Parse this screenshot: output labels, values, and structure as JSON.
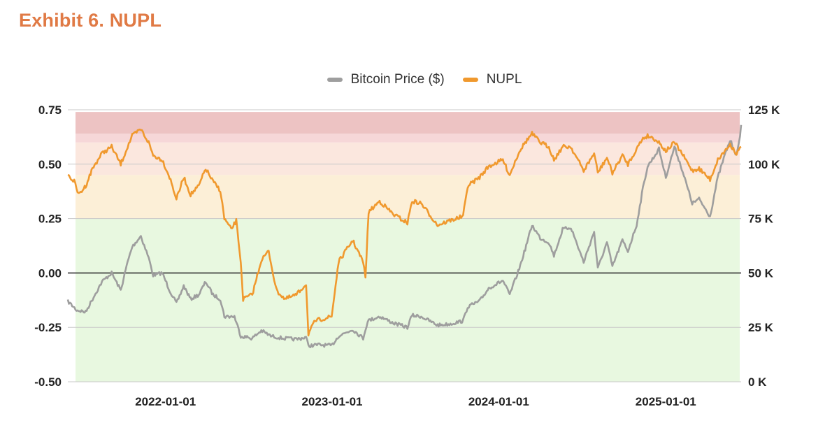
{
  "title": "Exhibit 6. NUPL",
  "chart_data": {
    "type": "line",
    "title": "Exhibit 6. NUPL",
    "legend_placement": "top-center",
    "legend": [
      {
        "name": "Bitcoin Price ($)",
        "color": "#9E9E9E"
      },
      {
        "name": "NUPL",
        "color": "#F0992E"
      }
    ],
    "x_range": [
      "2021-06-01",
      "2025-06-15"
    ],
    "x_ticks": [
      "2022-01-01",
      "2023-01-01",
      "2024-01-01",
      "2025-01-01"
    ],
    "y_left": {
      "range": [
        -0.5,
        0.75
      ],
      "ticks": [
        0.75,
        0.5,
        0.25,
        0.0,
        -0.25,
        -0.5
      ],
      "tick_labels": [
        "0.75",
        "0.50",
        "0.25",
        "0.00",
        "-0.25",
        "-0.50"
      ]
    },
    "y_right": {
      "range": [
        0,
        125000
      ],
      "ticks": [
        125000,
        100000,
        75000,
        50000,
        25000,
        0
      ],
      "tick_labels": [
        "125 K",
        "100 K",
        "75 K",
        "50 K",
        "25 K",
        "0 K"
      ]
    },
    "zones": [
      {
        "from": -0.5,
        "to": 0.25,
        "color": "#E8F8E0"
      },
      {
        "from": 0.25,
        "to": 0.45,
        "color": "#FCEFD7"
      },
      {
        "from": 0.45,
        "to": 0.6,
        "color": "#FBE7DE"
      },
      {
        "from": 0.6,
        "to": 0.64,
        "color": "#F6D7D8"
      },
      {
        "from": 0.64,
        "to": 0.74,
        "color": "#EDC3C3"
      }
    ],
    "series": [
      {
        "name": "Bitcoin Price ($)",
        "axis": "right",
        "points": [
          [
            "2021-06-01",
            37000
          ],
          [
            "2021-06-20",
            33000
          ],
          [
            "2021-07-10",
            32000
          ],
          [
            "2021-07-25",
            38000
          ],
          [
            "2021-08-15",
            46000
          ],
          [
            "2021-09-05",
            50000
          ],
          [
            "2021-09-25",
            42000
          ],
          [
            "2021-10-10",
            55000
          ],
          [
            "2021-10-20",
            62000
          ],
          [
            "2021-11-08",
            67000
          ],
          [
            "2021-11-25",
            57000
          ],
          [
            "2021-12-05",
            49000
          ],
          [
            "2021-12-25",
            50000
          ],
          [
            "2022-01-10",
            42000
          ],
          [
            "2022-01-25",
            36000
          ],
          [
            "2022-02-10",
            44000
          ],
          [
            "2022-02-25",
            38000
          ],
          [
            "2022-03-15",
            40000
          ],
          [
            "2022-03-30",
            46000
          ],
          [
            "2022-04-15",
            40000
          ],
          [
            "2022-05-01",
            38000
          ],
          [
            "2022-05-10",
            30000
          ],
          [
            "2022-06-01",
            30000
          ],
          [
            "2022-06-15",
            21000
          ],
          [
            "2022-07-10",
            20000
          ],
          [
            "2022-07-30",
            23500
          ],
          [
            "2022-08-20",
            21000
          ],
          [
            "2022-09-15",
            20000
          ],
          [
            "2022-10-15",
            19500
          ],
          [
            "2022-11-05",
            20500
          ],
          [
            "2022-11-10",
            16500
          ],
          [
            "2022-12-01",
            17000
          ],
          [
            "2022-12-31",
            16600
          ],
          [
            "2023-01-15",
            21000
          ],
          [
            "2023-02-15",
            24000
          ],
          [
            "2023-03-10",
            20000
          ],
          [
            "2023-03-20",
            28000
          ],
          [
            "2023-04-15",
            30000
          ],
          [
            "2023-05-15",
            27000
          ],
          [
            "2023-06-15",
            25000
          ],
          [
            "2023-06-25",
            30500
          ],
          [
            "2023-07-15",
            30000
          ],
          [
            "2023-08-20",
            26000
          ],
          [
            "2023-09-15",
            26500
          ],
          [
            "2023-10-15",
            28000
          ],
          [
            "2023-10-25",
            34500
          ],
          [
            "2023-11-20",
            37000
          ],
          [
            "2023-12-10",
            43000
          ],
          [
            "2024-01-10",
            46500
          ],
          [
            "2024-01-25",
            40000
          ],
          [
            "2024-02-15",
            52000
          ],
          [
            "2024-02-28",
            61000
          ],
          [
            "2024-03-14",
            72000
          ],
          [
            "2024-04-01",
            66000
          ],
          [
            "2024-04-20",
            64000
          ],
          [
            "2024-05-01",
            58000
          ],
          [
            "2024-05-20",
            70000
          ],
          [
            "2024-06-07",
            71000
          ],
          [
            "2024-07-05",
            55000
          ],
          [
            "2024-07-28",
            69000
          ],
          [
            "2024-08-05",
            52000
          ],
          [
            "2024-08-25",
            64000
          ],
          [
            "2024-09-06",
            53000
          ],
          [
            "2024-09-28",
            65000
          ],
          [
            "2024-10-10",
            60000
          ],
          [
            "2024-10-29",
            72000
          ],
          [
            "2024-11-12",
            89000
          ],
          [
            "2024-11-22",
            99000
          ],
          [
            "2024-12-05",
            103000
          ],
          [
            "2024-12-17",
            107000
          ],
          [
            "2025-01-01",
            94000
          ],
          [
            "2025-01-20",
            108000
          ],
          [
            "2025-02-05",
            98000
          ],
          [
            "2025-02-28",
            82000
          ],
          [
            "2025-03-15",
            84000
          ],
          [
            "2025-04-08",
            76000
          ],
          [
            "2025-04-25",
            94000
          ],
          [
            "2025-05-10",
            104000
          ],
          [
            "2025-05-22",
            111000
          ],
          [
            "2025-06-05",
            104000
          ],
          [
            "2025-06-10",
            109000
          ],
          [
            "2025-06-15",
            118000
          ]
        ]
      },
      {
        "name": "NUPL",
        "axis": "left",
        "points": [
          [
            "2021-06-01",
            0.45
          ],
          [
            "2021-06-15",
            0.42
          ],
          [
            "2021-06-25",
            0.36
          ],
          [
            "2021-07-10",
            0.4
          ],
          [
            "2021-07-25",
            0.48
          ],
          [
            "2021-08-15",
            0.55
          ],
          [
            "2021-09-05",
            0.58
          ],
          [
            "2021-09-25",
            0.5
          ],
          [
            "2021-10-10",
            0.58
          ],
          [
            "2021-10-20",
            0.63
          ],
          [
            "2021-11-08",
            0.66
          ],
          [
            "2021-11-25",
            0.6
          ],
          [
            "2021-12-05",
            0.54
          ],
          [
            "2021-12-25",
            0.52
          ],
          [
            "2022-01-10",
            0.44
          ],
          [
            "2022-01-25",
            0.34
          ],
          [
            "2022-02-10",
            0.44
          ],
          [
            "2022-02-25",
            0.36
          ],
          [
            "2022-03-15",
            0.4
          ],
          [
            "2022-03-30",
            0.48
          ],
          [
            "2022-04-15",
            0.42
          ],
          [
            "2022-05-01",
            0.38
          ],
          [
            "2022-05-10",
            0.25
          ],
          [
            "2022-05-25",
            0.2
          ],
          [
            "2022-06-05",
            0.24
          ],
          [
            "2022-06-15",
            0.05
          ],
          [
            "2022-06-20",
            -0.12
          ],
          [
            "2022-07-10",
            -0.1
          ],
          [
            "2022-07-30",
            0.06
          ],
          [
            "2022-08-15",
            0.1
          ],
          [
            "2022-09-01",
            -0.08
          ],
          [
            "2022-09-20",
            -0.12
          ],
          [
            "2022-10-15",
            -0.1
          ],
          [
            "2022-11-05",
            -0.05
          ],
          [
            "2022-11-10",
            -0.28
          ],
          [
            "2022-11-25",
            -0.22
          ],
          [
            "2022-12-31",
            -0.2
          ],
          [
            "2023-01-15",
            0.05
          ],
          [
            "2023-02-15",
            0.15
          ],
          [
            "2023-03-10",
            0.05
          ],
          [
            "2023-03-15",
            -0.02
          ],
          [
            "2023-03-22",
            0.28
          ],
          [
            "2023-04-15",
            0.33
          ],
          [
            "2023-05-15",
            0.27
          ],
          [
            "2023-06-15",
            0.23
          ],
          [
            "2023-06-25",
            0.33
          ],
          [
            "2023-07-15",
            0.32
          ],
          [
            "2023-08-20",
            0.22
          ],
          [
            "2023-09-15",
            0.24
          ],
          [
            "2023-10-15",
            0.26
          ],
          [
            "2023-10-25",
            0.4
          ],
          [
            "2023-11-20",
            0.44
          ],
          [
            "2023-12-10",
            0.49
          ],
          [
            "2024-01-10",
            0.52
          ],
          [
            "2024-01-25",
            0.45
          ],
          [
            "2024-02-15",
            0.56
          ],
          [
            "2024-02-28",
            0.6
          ],
          [
            "2024-03-14",
            0.64
          ],
          [
            "2024-04-01",
            0.6
          ],
          [
            "2024-04-20",
            0.58
          ],
          [
            "2024-05-01",
            0.52
          ],
          [
            "2024-05-20",
            0.58
          ],
          [
            "2024-06-07",
            0.58
          ],
          [
            "2024-07-05",
            0.47
          ],
          [
            "2024-07-28",
            0.55
          ],
          [
            "2024-08-05",
            0.46
          ],
          [
            "2024-08-25",
            0.53
          ],
          [
            "2024-09-06",
            0.46
          ],
          [
            "2024-09-28",
            0.54
          ],
          [
            "2024-10-10",
            0.5
          ],
          [
            "2024-10-29",
            0.57
          ],
          [
            "2024-11-12",
            0.62
          ],
          [
            "2024-11-22",
            0.63
          ],
          [
            "2024-12-05",
            0.62
          ],
          [
            "2024-12-17",
            0.6
          ],
          [
            "2025-01-01",
            0.56
          ],
          [
            "2025-01-20",
            0.6
          ],
          [
            "2025-02-05",
            0.55
          ],
          [
            "2025-02-28",
            0.47
          ],
          [
            "2025-03-15",
            0.48
          ],
          [
            "2025-04-08",
            0.43
          ],
          [
            "2025-04-25",
            0.52
          ],
          [
            "2025-05-10",
            0.56
          ],
          [
            "2025-05-22",
            0.59
          ],
          [
            "2025-06-05",
            0.55
          ],
          [
            "2025-06-10",
            0.56
          ],
          [
            "2025-06-15",
            0.58
          ]
        ]
      }
    ]
  }
}
